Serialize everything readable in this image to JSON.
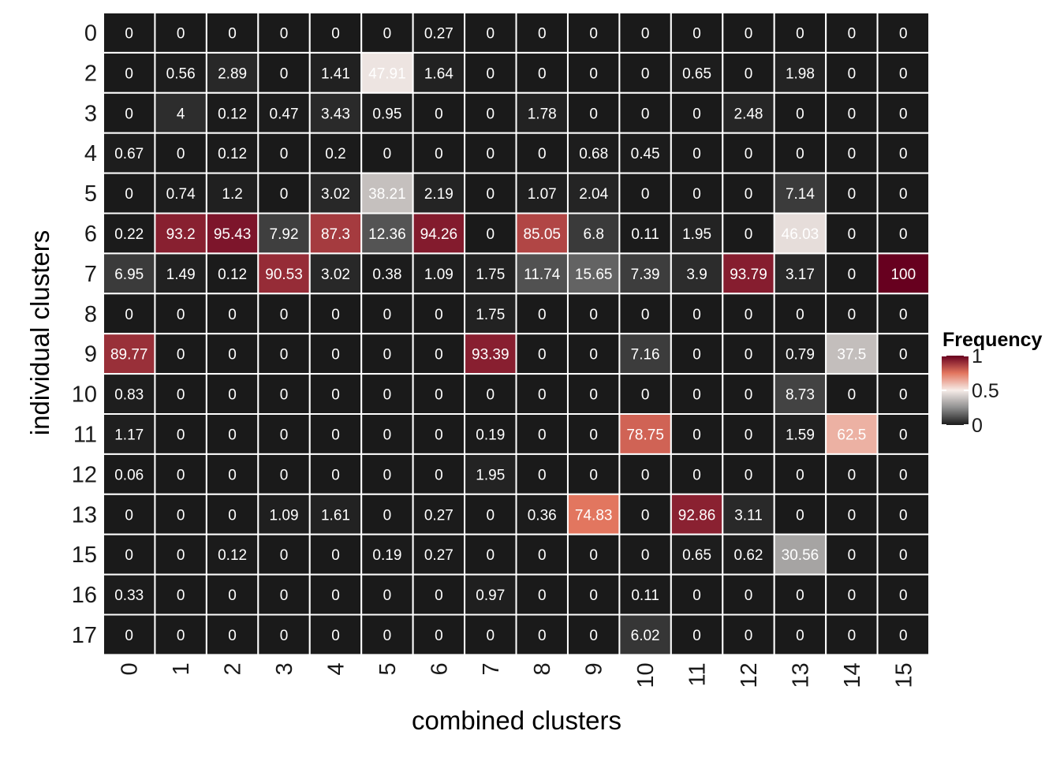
{
  "chart_data": {
    "type": "heatmap",
    "xlabel": "combined clusters",
    "ylabel": "individual clusters",
    "x_categories": [
      "0",
      "1",
      "2",
      "3",
      "4",
      "5",
      "6",
      "7",
      "8",
      "9",
      "10",
      "11",
      "12",
      "13",
      "14",
      "15"
    ],
    "y_categories": [
      "0",
      "2",
      "3",
      "4",
      "5",
      "6",
      "7",
      "8",
      "9",
      "10",
      "11",
      "12",
      "13",
      "15",
      "16",
      "17"
    ],
    "values": [
      [
        "0",
        "0",
        "0",
        "0",
        "0",
        "0",
        "0.27",
        "0",
        "0",
        "0",
        "0",
        "0",
        "0",
        "0",
        "0",
        "0"
      ],
      [
        "0",
        "0.56",
        "2.89",
        "0",
        "1.41",
        "47.91",
        "1.64",
        "0",
        "0",
        "0",
        "0",
        "0.65",
        "0",
        "1.98",
        "0",
        "0"
      ],
      [
        "0",
        "4",
        "0.12",
        "0.47",
        "3.43",
        "0.95",
        "0",
        "0",
        "1.78",
        "0",
        "0",
        "0",
        "2.48",
        "0",
        "0",
        "0"
      ],
      [
        "0.67",
        "0",
        "0.12",
        "0",
        "0.2",
        "0",
        "0",
        "0",
        "0",
        "0.68",
        "0.45",
        "0",
        "0",
        "0",
        "0",
        "0"
      ],
      [
        "0",
        "0.74",
        "1.2",
        "0",
        "3.02",
        "38.21",
        "2.19",
        "0",
        "1.07",
        "2.04",
        "0",
        "0",
        "0",
        "7.14",
        "0",
        "0"
      ],
      [
        "0.22",
        "93.2",
        "95.43",
        "7.92",
        "87.3",
        "12.36",
        "94.26",
        "0",
        "85.05",
        "6.8",
        "0.11",
        "1.95",
        "0",
        "46.03",
        "0",
        "0"
      ],
      [
        "6.95",
        "1.49",
        "0.12",
        "90.53",
        "3.02",
        "0.38",
        "1.09",
        "1.75",
        "11.74",
        "15.65",
        "7.39",
        "3.9",
        "93.79",
        "3.17",
        "0",
        "100"
      ],
      [
        "0",
        "0",
        "0",
        "0",
        "0",
        "0",
        "0",
        "1.75",
        "0",
        "0",
        "0",
        "0",
        "0",
        "0",
        "0",
        "0"
      ],
      [
        "89.77",
        "0",
        "0",
        "0",
        "0",
        "0",
        "0",
        "93.39",
        "0",
        "0",
        "7.16",
        "0",
        "0",
        "0.79",
        "37.5",
        "0"
      ],
      [
        "0.83",
        "0",
        "0",
        "0",
        "0",
        "0",
        "0",
        "0",
        "0",
        "0",
        "0",
        "0",
        "0",
        "8.73",
        "0",
        "0"
      ],
      [
        "1.17",
        "0",
        "0",
        "0",
        "0",
        "0",
        "0",
        "0.19",
        "0",
        "0",
        "78.75",
        "0",
        "0",
        "1.59",
        "62.5",
        "0"
      ],
      [
        "0.06",
        "0",
        "0",
        "0",
        "0",
        "0",
        "0",
        "1.95",
        "0",
        "0",
        "0",
        "0",
        "0",
        "0",
        "0",
        "0"
      ],
      [
        "0",
        "0",
        "0",
        "1.09",
        "1.61",
        "0",
        "0.27",
        "0",
        "0.36",
        "74.83",
        "0",
        "92.86",
        "3.11",
        "0",
        "0",
        "0"
      ],
      [
        "0",
        "0",
        "0.12",
        "0",
        "0",
        "0.19",
        "0.27",
        "0",
        "0",
        "0",
        "0",
        "0.65",
        "0.62",
        "30.56",
        "0",
        "0"
      ],
      [
        "0.33",
        "0",
        "0",
        "0",
        "0",
        "0",
        "0",
        "0.97",
        "0",
        "0",
        "0.11",
        "0",
        "0",
        "0",
        "0",
        "0"
      ],
      [
        "0",
        "0",
        "0",
        "0",
        "0",
        "0",
        "0",
        "0",
        "0",
        "0",
        "6.02",
        "0",
        "0",
        "0",
        "0",
        "0"
      ]
    ],
    "color_scale": {
      "stops": [
        {
          "value": 0,
          "color": "#1a1a1a"
        },
        {
          "value": 0.25,
          "color": "#8f8f8f"
        },
        {
          "value": 0.5,
          "color": "#f6ece8"
        },
        {
          "value": 0.75,
          "color": "#e2755e"
        },
        {
          "value": 1,
          "color": "#67001f"
        }
      ],
      "range": [
        0,
        1
      ]
    },
    "legend": {
      "title": "Frequency",
      "ticks": [
        "1",
        "0.5",
        "0"
      ],
      "position": "right"
    },
    "cell_border_color": "#ffffff",
    "text_color": "#ffffff"
  }
}
